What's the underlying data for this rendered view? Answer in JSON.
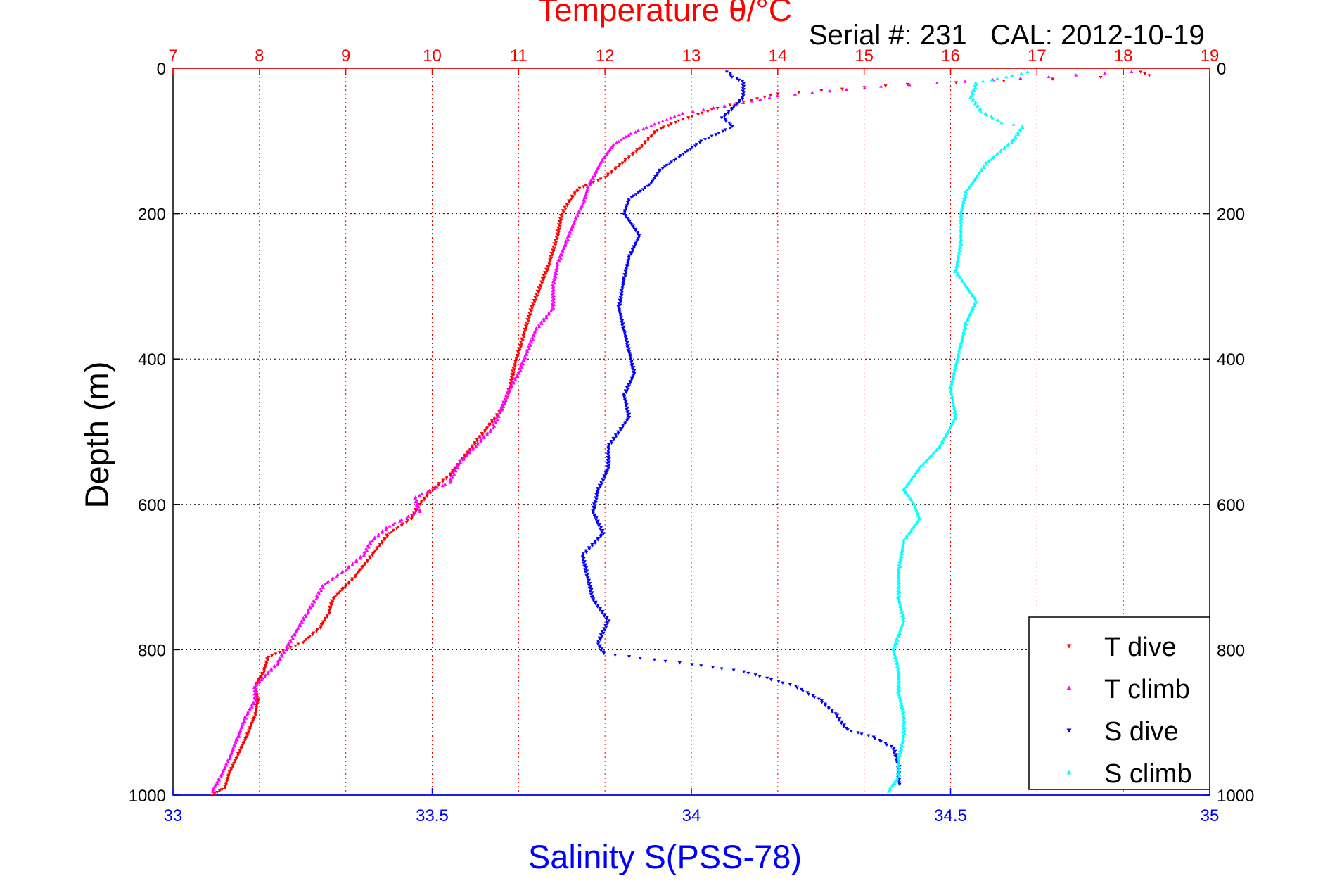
{
  "figure": {
    "title": "Temperature θ/°C",
    "annotation": "Serial #: 231   CAL: 2012-10-19"
  },
  "chart_data": {
    "type": "scatter",
    "title": "Temperature θ/°C",
    "annotation": "Serial #: 231   CAL: 2012-10-19",
    "xlabel": "Salinity S(PSS-78)",
    "ylabel": "Depth (m)",
    "x_bottom": {
      "label": "Salinity S(PSS-78)",
      "lim": [
        33,
        35
      ],
      "ticks": [
        33,
        33.5,
        34,
        34.5,
        35
      ],
      "tick_labels": [
        "33",
        "33.5",
        "34",
        "34.5",
        "35"
      ],
      "color": "#0000ff"
    },
    "x_top": {
      "label": "Temperature θ/°C",
      "lim": [
        7,
        19
      ],
      "ticks": [
        7,
        8,
        9,
        10,
        11,
        12,
        13,
        14,
        15,
        16,
        17,
        18,
        19
      ],
      "tick_labels": [
        "7",
        "8",
        "9",
        "10",
        "11",
        "12",
        "13",
        "14",
        "15",
        "16",
        "17",
        "18",
        "19"
      ],
      "color": "#ff0000",
      "grid": true
    },
    "y": {
      "label": "Depth (m)",
      "lim": [
        0,
        1000
      ],
      "reversed": true,
      "ticks": [
        0,
        200,
        400,
        600,
        800,
        1000
      ],
      "tick_labels": [
        "0",
        "200",
        "400",
        "600",
        "800",
        "1000"
      ],
      "grid": true
    },
    "legend": {
      "position": "bottom-right"
    },
    "series": [
      {
        "name": "T dive",
        "axis": "temperature",
        "marker": "triangle-down",
        "color": "#ff0000",
        "points": [
          [
            18.2,
            5
          ],
          [
            18.3,
            10
          ],
          [
            15.5,
            22
          ],
          [
            14.0,
            35
          ],
          [
            13.3,
            55
          ],
          [
            12.9,
            70
          ],
          [
            12.6,
            85
          ],
          [
            12.4,
            110
          ],
          [
            12.2,
            130
          ],
          [
            12.0,
            150
          ],
          [
            11.7,
            165
          ],
          [
            11.6,
            180
          ],
          [
            11.5,
            200
          ],
          [
            11.45,
            230
          ],
          [
            11.35,
            270
          ],
          [
            11.25,
            300
          ],
          [
            11.15,
            330
          ],
          [
            11.05,
            370
          ],
          [
            10.95,
            410
          ],
          [
            10.9,
            440
          ],
          [
            10.8,
            470
          ],
          [
            10.6,
            500
          ],
          [
            10.4,
            530
          ],
          [
            10.2,
            560
          ],
          [
            10.0,
            580
          ],
          [
            9.85,
            600
          ],
          [
            9.75,
            620
          ],
          [
            9.5,
            640
          ],
          [
            9.3,
            670
          ],
          [
            9.1,
            700
          ],
          [
            8.85,
            730
          ],
          [
            8.8,
            750
          ],
          [
            8.7,
            770
          ],
          [
            8.5,
            790
          ],
          [
            8.1,
            810
          ],
          [
            8.05,
            830
          ],
          [
            7.95,
            850
          ],
          [
            7.98,
            870
          ],
          [
            7.95,
            890
          ],
          [
            7.85,
            920
          ],
          [
            7.75,
            945
          ],
          [
            7.65,
            970
          ],
          [
            7.6,
            990
          ],
          [
            7.45,
            1000
          ]
        ]
      },
      {
        "name": "T climb",
        "axis": "temperature",
        "marker": "triangle-up",
        "color": "#ff00ff",
        "points": [
          [
            18.1,
            5
          ],
          [
            15.2,
            25
          ],
          [
            14.0,
            38
          ],
          [
            13.5,
            50
          ],
          [
            12.9,
            62
          ],
          [
            12.3,
            90
          ],
          [
            12.1,
            105
          ],
          [
            11.95,
            130
          ],
          [
            11.8,
            165
          ],
          [
            11.75,
            185
          ],
          [
            11.65,
            210
          ],
          [
            11.55,
            240
          ],
          [
            11.45,
            270
          ],
          [
            11.4,
            300
          ],
          [
            11.4,
            330
          ],
          [
            11.2,
            360
          ],
          [
            11.1,
            390
          ],
          [
            11.0,
            420
          ],
          [
            10.9,
            440
          ],
          [
            10.8,
            470
          ],
          [
            10.7,
            495
          ],
          [
            10.5,
            520
          ],
          [
            10.3,
            545
          ],
          [
            10.2,
            570
          ],
          [
            9.8,
            590
          ],
          [
            9.85,
            610
          ],
          [
            9.5,
            630
          ],
          [
            9.3,
            650
          ],
          [
            9.2,
            670
          ],
          [
            9.0,
            690
          ],
          [
            8.75,
            710
          ],
          [
            8.65,
            730
          ],
          [
            8.55,
            750
          ],
          [
            8.4,
            780
          ],
          [
            8.3,
            800
          ],
          [
            8.2,
            820
          ],
          [
            7.95,
            850
          ],
          [
            7.95,
            870
          ],
          [
            7.85,
            890
          ],
          [
            7.75,
            920
          ],
          [
            7.65,
            950
          ],
          [
            7.55,
            975
          ],
          [
            7.45,
            995
          ]
        ]
      },
      {
        "name": "S dive",
        "axis": "salinity",
        "marker": "triangle-down",
        "color": "#0000ff",
        "points": [
          [
            34.07,
            5
          ],
          [
            34.08,
            12
          ],
          [
            34.1,
            18
          ],
          [
            34.1,
            40
          ],
          [
            34.08,
            55
          ],
          [
            34.06,
            68
          ],
          [
            34.08,
            80
          ],
          [
            34.02,
            100
          ],
          [
            33.98,
            120
          ],
          [
            33.94,
            140
          ],
          [
            33.92,
            160
          ],
          [
            33.88,
            180
          ],
          [
            33.87,
            200
          ],
          [
            33.9,
            230
          ],
          [
            33.88,
            260
          ],
          [
            33.87,
            290
          ],
          [
            33.86,
            330
          ],
          [
            33.87,
            360
          ],
          [
            33.88,
            390
          ],
          [
            33.89,
            420
          ],
          [
            33.87,
            450
          ],
          [
            33.88,
            480
          ],
          [
            33.84,
            520
          ],
          [
            33.84,
            550
          ],
          [
            33.82,
            580
          ],
          [
            33.81,
            610
          ],
          [
            33.83,
            640
          ],
          [
            33.79,
            670
          ],
          [
            33.8,
            700
          ],
          [
            33.81,
            730
          ],
          [
            33.84,
            760
          ],
          [
            33.82,
            790
          ],
          [
            33.83,
            805
          ],
          [
            34.0,
            820
          ],
          [
            34.1,
            830
          ],
          [
            34.2,
            850
          ],
          [
            34.25,
            870
          ],
          [
            34.28,
            890
          ],
          [
            34.3,
            910
          ],
          [
            34.35,
            920
          ],
          [
            34.39,
            935
          ],
          [
            34.4,
            960
          ],
          [
            34.4,
            985
          ]
        ]
      },
      {
        "name": "S climb",
        "axis": "salinity",
        "marker": "triangle-up",
        "color": "#00ffff",
        "points": [
          [
            34.65,
            5
          ],
          [
            34.62,
            10
          ],
          [
            34.55,
            20
          ],
          [
            34.54,
            40
          ],
          [
            34.56,
            60
          ],
          [
            34.6,
            75
          ],
          [
            34.64,
            80
          ],
          [
            34.62,
            100
          ],
          [
            34.57,
            130
          ],
          [
            34.53,
            170
          ],
          [
            34.52,
            200
          ],
          [
            34.52,
            240
          ],
          [
            34.51,
            280
          ],
          [
            34.55,
            320
          ],
          [
            34.53,
            350
          ],
          [
            34.52,
            380
          ],
          [
            34.51,
            410
          ],
          [
            34.5,
            440
          ],
          [
            34.51,
            480
          ],
          [
            34.48,
            520
          ],
          [
            34.44,
            550
          ],
          [
            34.41,
            580
          ],
          [
            34.43,
            600
          ],
          [
            34.44,
            620
          ],
          [
            34.41,
            650
          ],
          [
            34.4,
            690
          ],
          [
            34.4,
            730
          ],
          [
            34.41,
            760
          ],
          [
            34.39,
            800
          ],
          [
            34.4,
            830
          ],
          [
            34.4,
            860
          ],
          [
            34.41,
            890
          ],
          [
            34.41,
            920
          ],
          [
            34.4,
            950
          ],
          [
            34.4,
            975
          ],
          [
            34.38,
            995
          ]
        ]
      }
    ]
  }
}
